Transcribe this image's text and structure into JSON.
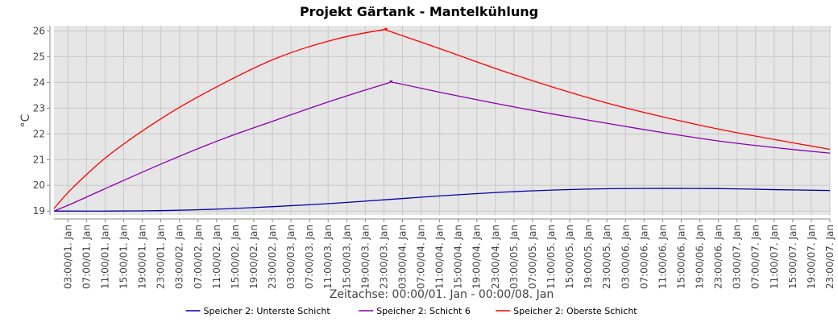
{
  "chart_data": {
    "type": "line",
    "title": "Projekt Gärtank - Mantelkühlung",
    "xlabel": "Zeitachse: 00:00/01. Jan - 00:00/08. Jan",
    "ylabel": "°C",
    "ylim": [
      18.85,
      26.2
    ],
    "yticks": [
      19,
      20,
      21,
      22,
      23,
      24,
      25,
      26
    ],
    "xlim_hours": [
      0,
      167
    ],
    "x_tick_labels": [
      "03:00/01. Jan",
      "07:00/01. Jan",
      "11:00/01. Jan",
      "15:00/01. Jan",
      "19:00/01. Jan",
      "23:00/01. Jan",
      "03:00/02. Jan",
      "07:00/02. Jan",
      "11:00/02. Jan",
      "15:00/02. Jan",
      "19:00/02. Jan",
      "23:00/02. Jan",
      "03:00/03. Jan",
      "07:00/03. Jan",
      "11:00/03. Jan",
      "15:00/03. Jan",
      "19:00/03. Jan",
      "23:00/03. Jan",
      "03:00/04. Jan",
      "07:00/04. Jan",
      "11:00/04. Jan",
      "15:00/04. Jan",
      "19:00/04. Jan",
      "23:00/04. Jan",
      "03:00/05. Jan",
      "07:00/05. Jan",
      "11:00/05. Jan",
      "15:00/05. Jan",
      "19:00/05. Jan",
      "23:00/05. Jan",
      "03:00/06. Jan",
      "07:00/06. Jan",
      "11:00/06. Jan",
      "15:00/06. Jan",
      "19:00/06. Jan",
      "23:00/06. Jan",
      "03:00/07. Jan",
      "07:00/07. Jan",
      "11:00/07. Jan",
      "15:00/07. Jan",
      "19:00/07. Jan",
      "23:00/07. Jan"
    ],
    "x_tick_hours": [
      3,
      7,
      11,
      15,
      19,
      23,
      27,
      31,
      35,
      39,
      43,
      47,
      51,
      55,
      59,
      63,
      67,
      71,
      75,
      79,
      83,
      87,
      91,
      95,
      99,
      103,
      107,
      111,
      115,
      119,
      123,
      127,
      131,
      135,
      139,
      143,
      147,
      151,
      155,
      159,
      163,
      167
    ],
    "grid": true,
    "legend_position": "bottom",
    "series": [
      {
        "name": "Speicher 2: Unterste Schicht",
        "color": "#0000aa",
        "x": [
          0,
          12,
          24,
          36,
          48,
          60,
          72,
          84,
          96,
          108,
          120,
          132,
          144,
          156,
          167
        ],
        "y": [
          19.0,
          19.0,
          19.02,
          19.08,
          19.18,
          19.3,
          19.45,
          19.6,
          19.73,
          19.82,
          19.87,
          19.88,
          19.87,
          19.83,
          19.8
        ]
      },
      {
        "name": "Speicher 2: Schicht 6",
        "color": "#8800aa",
        "x": [
          0,
          4,
          12,
          24,
          36,
          48,
          60,
          72,
          73,
          84,
          96,
          108,
          120,
          132,
          144,
          156,
          167
        ],
        "y": [
          19.0,
          19.3,
          19.95,
          20.9,
          21.78,
          22.55,
          23.3,
          23.98,
          24.0,
          23.58,
          23.15,
          22.75,
          22.38,
          22.02,
          21.7,
          21.45,
          21.25
        ]
      },
      {
        "name": "Speicher 2: Oberste Schicht",
        "color": "#ff0000",
        "x": [
          0,
          4,
          12,
          24,
          36,
          48,
          60,
          71,
          72,
          84,
          96,
          108,
          120,
          132,
          144,
          156,
          167
        ],
        "y": [
          19.1,
          19.9,
          21.2,
          22.7,
          23.92,
          24.95,
          25.65,
          26.05,
          26.0,
          25.25,
          24.48,
          23.78,
          23.15,
          22.62,
          22.15,
          21.75,
          21.4
        ]
      }
    ]
  }
}
